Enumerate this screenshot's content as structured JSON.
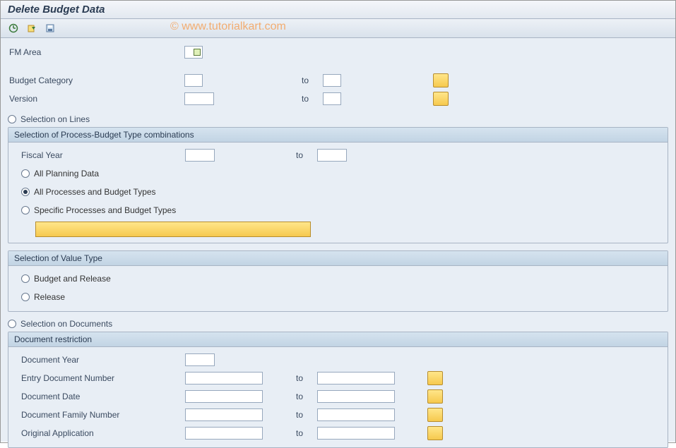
{
  "title": "Delete Budget Data",
  "watermark": "© www.tutorialkart.com",
  "toolbar_icons": [
    "execute",
    "get-variant",
    "save-variant"
  ],
  "colors": {
    "body_bg": "#e8eef5",
    "group_hd_bg": "#c2d4e4",
    "border": "#a8b4c4",
    "yellow_btn_top": "#ffe68a",
    "yellow_btn_bottom": "#f6c94e",
    "yellow_btn_border": "#b78d2e",
    "text": "#3a4a60"
  },
  "top": {
    "fm_area_label": "FM Area",
    "fm_area_value": "",
    "budget_category_label": "Budget Category",
    "budget_category_from": "",
    "budget_category_to": "",
    "version_label": "Version",
    "version_from": "",
    "version_to": "",
    "to_label": "to"
  },
  "sel_lines": {
    "label": "Selection on Lines",
    "checked": false
  },
  "group_process": {
    "title": "Selection of Process-Budget Type combinations",
    "fiscal_year_label": "Fiscal Year",
    "fiscal_year_from": "",
    "fiscal_year_to": "",
    "to_label": "to",
    "opt_all_planning": "All Planning Data",
    "opt_all_processes": "All Processes and Budget Types",
    "opt_specific": "Specific Processes and Budget Types",
    "selected": "opt_all_processes"
  },
  "group_value": {
    "title": "Selection of Value Type",
    "opt_budget_release": "Budget and Release",
    "opt_release": "Release",
    "selected": ""
  },
  "sel_docs": {
    "label": "Selection on Documents",
    "checked": false
  },
  "group_docs": {
    "title": "Document restriction",
    "to_label": "to",
    "rows": [
      {
        "label": "Document Year",
        "from": "",
        "to": null
      },
      {
        "label": "Entry Document Number",
        "from": "",
        "to": ""
      },
      {
        "label": "Document Date",
        "from": "",
        "to": ""
      },
      {
        "label": "Document Family Number",
        "from": "",
        "to": ""
      },
      {
        "label": "Original Application",
        "from": "",
        "to": ""
      }
    ]
  }
}
